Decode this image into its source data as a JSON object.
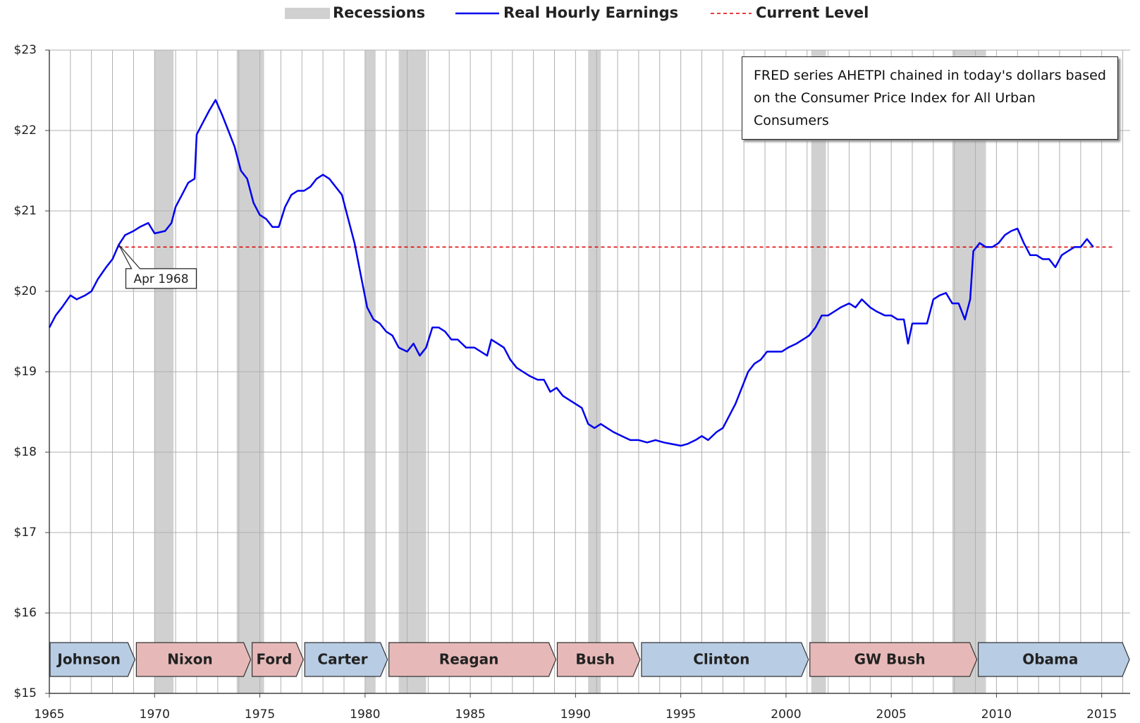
{
  "chart_data": {
    "type": "line",
    "xlim": [
      1965,
      2016.35
    ],
    "xticks": [
      1965,
      1970,
      1975,
      1980,
      1985,
      1990,
      1995,
      2000,
      2005,
      2010,
      2015
    ],
    "xgrid": [
      1965,
      1966,
      1967,
      1968,
      1969,
      1970,
      1971,
      1972,
      1973,
      1974,
      1975,
      1976,
      1977,
      1978,
      1979,
      1980,
      1981,
      1982,
      1983,
      1984,
      1985,
      1986,
      1987,
      1988,
      1989,
      1990,
      1991,
      1992,
      1993,
      1994,
      1995,
      1996,
      1997,
      1998,
      1999,
      2000,
      2001,
      2002,
      2003,
      2004,
      2005,
      2006,
      2007,
      2008,
      2009,
      2010,
      2011,
      2012,
      2013,
      2014,
      2015,
      2016
    ],
    "ylim": [
      15,
      23
    ],
    "yticks": [
      {
        "value": 15,
        "label": "$15"
      },
      {
        "value": 16,
        "label": "$16"
      },
      {
        "value": 17,
        "label": "$17"
      },
      {
        "value": 18,
        "label": "$18"
      },
      {
        "value": 19,
        "label": "$19"
      },
      {
        "value": 20,
        "label": "$20"
      },
      {
        "value": 21,
        "label": "$21"
      },
      {
        "value": 22,
        "label": "$22"
      },
      {
        "value": 23,
        "label": "$23"
      }
    ],
    "grid": true,
    "recessions": {
      "name": "Recessions",
      "color": "#d0d0d0",
      "spans": [
        [
          1970.0,
          1970.9
        ],
        [
          1973.9,
          1975.2
        ],
        [
          1980.0,
          1980.5
        ],
        [
          1981.6,
          1982.9
        ],
        [
          1990.6,
          1991.2
        ],
        [
          2001.2,
          2001.9
        ],
        [
          2007.9,
          2009.5
        ]
      ]
    },
    "series": [
      {
        "name": "Real Hourly Earnings",
        "color": "#0000ee",
        "x": [
          1965.0,
          1965.3,
          1965.6,
          1966.0,
          1966.3,
          1966.7,
          1967.0,
          1967.3,
          1967.7,
          1968.0,
          1968.3,
          1968.6,
          1969.0,
          1969.3,
          1969.7,
          1970.0,
          1970.5,
          1970.8,
          1971.0,
          1971.3,
          1971.6,
          1971.9,
          1972.0,
          1972.3,
          1972.6,
          1972.9,
          1973.2,
          1973.5,
          1973.8,
          1974.1,
          1974.4,
          1974.7,
          1975.0,
          1975.3,
          1975.6,
          1975.9,
          1976.2,
          1976.5,
          1976.8,
          1977.1,
          1977.4,
          1977.7,
          1978.0,
          1978.3,
          1978.6,
          1978.9,
          1979.2,
          1979.5,
          1979.8,
          1980.1,
          1980.4,
          1980.7,
          1981.0,
          1981.3,
          1981.6,
          1982.0,
          1982.3,
          1982.6,
          1982.9,
          1983.2,
          1983.5,
          1983.8,
          1984.1,
          1984.4,
          1984.8,
          1985.2,
          1985.5,
          1985.8,
          1986.0,
          1986.3,
          1986.6,
          1986.9,
          1987.2,
          1987.5,
          1987.8,
          1988.2,
          1988.5,
          1988.8,
          1989.1,
          1989.4,
          1989.7,
          1990.0,
          1990.3,
          1990.6,
          1990.9,
          1991.2,
          1991.5,
          1991.8,
          1992.2,
          1992.6,
          1993.0,
          1993.4,
          1993.8,
          1994.2,
          1994.6,
          1995.0,
          1995.3,
          1995.7,
          1996.0,
          1996.3,
          1996.7,
          1997.0,
          1997.3,
          1997.6,
          1997.9,
          1998.2,
          1998.5,
          1998.8,
          1999.1,
          1999.5,
          1999.8,
          2000.1,
          2000.5,
          2000.8,
          2001.1,
          2001.4,
          2001.7,
          2002.0,
          2002.3,
          2002.6,
          2003.0,
          2003.3,
          2003.6,
          2004.0,
          2004.3,
          2004.7,
          2005.0,
          2005.3,
          2005.6,
          2005.8,
          2006.0,
          2006.4,
          2006.7,
          2007.0,
          2007.3,
          2007.6,
          2007.9,
          2008.2,
          2008.5,
          2008.75,
          2008.9,
          2009.2,
          2009.5,
          2009.8,
          2010.1,
          2010.4,
          2010.7,
          2011.0,
          2011.3,
          2011.6,
          2011.9,
          2012.2,
          2012.5,
          2012.8,
          2013.1,
          2013.4,
          2013.7,
          2014.0,
          2014.3,
          2014.6
        ],
        "values": [
          19.55,
          19.7,
          19.8,
          19.95,
          19.9,
          19.95,
          20.0,
          20.15,
          20.3,
          20.4,
          20.58,
          20.7,
          20.75,
          20.8,
          20.85,
          20.72,
          20.75,
          20.85,
          21.05,
          21.2,
          21.35,
          21.4,
          21.95,
          22.1,
          22.25,
          22.38,
          22.2,
          22.0,
          21.8,
          21.5,
          21.4,
          21.1,
          20.95,
          20.9,
          20.8,
          20.8,
          21.05,
          21.2,
          21.25,
          21.25,
          21.3,
          21.4,
          21.45,
          21.4,
          21.3,
          21.2,
          20.9,
          20.6,
          20.2,
          19.8,
          19.65,
          19.6,
          19.5,
          19.45,
          19.3,
          19.25,
          19.35,
          19.2,
          19.3,
          19.55,
          19.55,
          19.5,
          19.4,
          19.4,
          19.3,
          19.3,
          19.25,
          19.2,
          19.4,
          19.35,
          19.3,
          19.15,
          19.05,
          19.0,
          18.95,
          18.9,
          18.9,
          18.75,
          18.8,
          18.7,
          18.65,
          18.6,
          18.55,
          18.35,
          18.3,
          18.35,
          18.3,
          18.25,
          18.2,
          18.15,
          18.15,
          18.12,
          18.15,
          18.12,
          18.1,
          18.08,
          18.1,
          18.15,
          18.2,
          18.15,
          18.25,
          18.3,
          18.45,
          18.6,
          18.8,
          19.0,
          19.1,
          19.15,
          19.25,
          19.25,
          19.25,
          19.3,
          19.35,
          19.4,
          19.45,
          19.55,
          19.7,
          19.7,
          19.75,
          19.8,
          19.85,
          19.8,
          19.9,
          19.8,
          19.75,
          19.7,
          19.7,
          19.65,
          19.65,
          19.35,
          19.6,
          19.6,
          19.6,
          19.9,
          19.95,
          19.98,
          19.85,
          19.85,
          19.65,
          19.9,
          20.5,
          20.6,
          20.55,
          20.55,
          20.6,
          20.7,
          20.75,
          20.78,
          20.6,
          20.45,
          20.45,
          20.4,
          20.4,
          20.3,
          20.45,
          20.5,
          20.55,
          20.55,
          20.65,
          20.55
        ]
      }
    ],
    "current_level": {
      "name": "Current Level",
      "value": 20.55,
      "color": "#e00000"
    },
    "annotation": {
      "text": "Apr 1968",
      "x": 1968.3,
      "y": 20.58
    },
    "note": "FRED series AHETPI chained in today's dollars based on the Consumer Price Index for All Urban Consumers",
    "presidents": [
      {
        "name": "Johnson",
        "start": 1965.0,
        "end": 1969.1,
        "color": "#b8cce4"
      },
      {
        "name": "Nixon",
        "start": 1969.1,
        "end": 1974.6,
        "color": "#e6b9b8"
      },
      {
        "name": "Ford",
        "start": 1974.6,
        "end": 1977.1,
        "color": "#e6b9b8"
      },
      {
        "name": "Carter",
        "start": 1977.1,
        "end": 1981.1,
        "color": "#b8cce4"
      },
      {
        "name": "Reagan",
        "start": 1981.1,
        "end": 1989.1,
        "color": "#e6b9b8"
      },
      {
        "name": "Bush",
        "start": 1989.1,
        "end": 1993.1,
        "color": "#e6b9b8"
      },
      {
        "name": "Clinton",
        "start": 1993.1,
        "end": 2001.1,
        "color": "#b8cce4"
      },
      {
        "name": "GW Bush",
        "start": 2001.1,
        "end": 2009.1,
        "color": "#e6b9b8"
      },
      {
        "name": "Obama",
        "start": 2009.1,
        "end": 2016.35,
        "color": "#b8cce4"
      }
    ]
  }
}
